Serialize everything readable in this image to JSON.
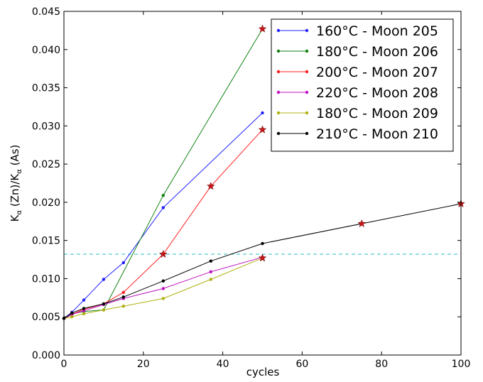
{
  "chart_data": {
    "type": "line",
    "title": "",
    "xlabel": "cycles",
    "ylabel": "Kα (Zn)/Kα (As)",
    "ylabel_parts": {
      "k1": "K",
      "sub1": "α",
      "mid": " (Zn)/K",
      "sub2": "α",
      "end": " (As)"
    },
    "xlim": [
      0,
      100
    ],
    "ylim": [
      0,
      0.045
    ],
    "xticks": [
      0,
      20,
      40,
      60,
      80,
      100
    ],
    "xtick_labels": [
      "0",
      "20",
      "40",
      "60",
      "80",
      "100"
    ],
    "yticks": [
      0,
      0.005,
      0.01,
      0.015,
      0.02,
      0.025,
      0.03,
      0.035,
      0.04,
      0.045
    ],
    "ytick_labels": [
      "0.000",
      "0.005",
      "0.010",
      "0.015",
      "0.020",
      "0.025",
      "0.030",
      "0.035",
      "0.040",
      "0.045"
    ],
    "grid": false,
    "legend_position": "top-right",
    "reference_line": {
      "y": 0.0132,
      "style": "dashed",
      "color": "#55c8d8"
    },
    "series": [
      {
        "name": "160°C - Moon 205",
        "color": "#2020ff",
        "x": [
          0,
          2,
          5,
          10,
          15,
          25,
          50
        ],
        "y": [
          0.0048,
          0.0056,
          0.0072,
          0.0099,
          0.0121,
          0.0193,
          0.0317
        ]
      },
      {
        "name": "180°C - Moon 206",
        "color": "#108010",
        "x": [
          0,
          2,
          5,
          10,
          25,
          50
        ],
        "y": [
          0.0048,
          0.0054,
          0.0057,
          0.0059,
          0.0209,
          0.0427
        ]
      },
      {
        "name": "200°C - Moon 207",
        "color": "#ff2020",
        "x": [
          0,
          2,
          5,
          10,
          15,
          25,
          37,
          50
        ],
        "y": [
          0.0048,
          0.0053,
          0.006,
          0.0067,
          0.0082,
          0.0132,
          0.0221,
          0.0295
        ]
      },
      {
        "name": "220°C - Moon 208",
        "color": "#c010c0",
        "x": [
          0,
          2,
          5,
          10,
          15,
          25,
          37,
          50
        ],
        "y": [
          0.0048,
          0.0053,
          0.0058,
          0.0066,
          0.0074,
          0.0087,
          0.0109,
          0.0128
        ]
      },
      {
        "name": "180°C - Moon 209",
        "color": "#b0b010",
        "x": [
          0,
          2,
          5,
          10,
          15,
          25,
          37,
          50
        ],
        "y": [
          0.0048,
          0.005,
          0.0054,
          0.0059,
          0.0064,
          0.0074,
          0.0099,
          0.0127
        ]
      },
      {
        "name": "210°C - Moon 210",
        "color": "#000000",
        "x": [
          0,
          2,
          5,
          10,
          15,
          25,
          37,
          50,
          75,
          100
        ],
        "y": [
          0.0048,
          0.0055,
          0.0061,
          0.0067,
          0.0076,
          0.0097,
          0.0123,
          0.0146,
          0.0172,
          0.0198
        ]
      }
    ],
    "star_markers": {
      "color": "#c81818",
      "points": [
        {
          "x": 50,
          "y": 0.0427
        },
        {
          "x": 50,
          "y": 0.0295
        },
        {
          "x": 37,
          "y": 0.0221
        },
        {
          "x": 25,
          "y": 0.0132
        },
        {
          "x": 50,
          "y": 0.0127
        },
        {
          "x": 75,
          "y": 0.0172
        },
        {
          "x": 100,
          "y": 0.0198
        }
      ]
    }
  }
}
